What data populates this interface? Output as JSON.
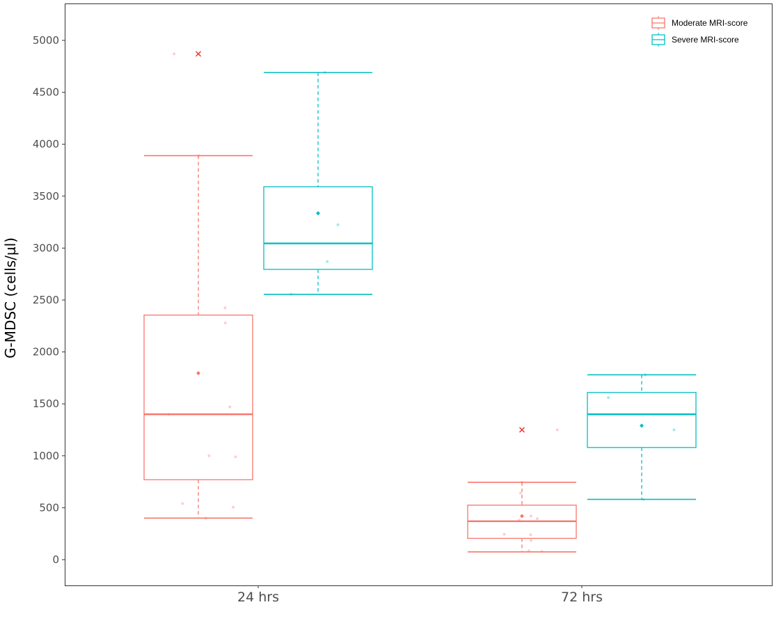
{
  "chart_data": {
    "type": "box",
    "ylabel": "G-MDSC (cells/µl)",
    "xlabel": "",
    "ylim": [
      -250,
      5350
    ],
    "y_ticks": [
      0,
      500,
      1000,
      1500,
      2000,
      2500,
      3000,
      3500,
      4000,
      4500,
      5000
    ],
    "categories": [
      "24 hrs",
      "72 hrs"
    ],
    "grid": false,
    "legend_position": "top-right",
    "series": [
      {
        "name": "Moderate MRI-score",
        "color": "#F8766D",
        "boxes": [
          {
            "category": "24 hrs",
            "whisker_low": 400,
            "q1": 770,
            "median": 1400,
            "q3": 2355,
            "whisker_high": 3890,
            "mean": 1795,
            "outliers": [
              4870
            ],
            "points": [
              4870,
              3890,
              2425,
              2280,
              1470,
              1400,
              1000,
              990,
              540,
              505,
              400
            ]
          },
          {
            "category": "72 hrs",
            "whisker_low": 75,
            "q1": 205,
            "median": 370,
            "q3": 525,
            "whisker_high": 745,
            "mean": 420,
            "outliers": [
              1250
            ],
            "points": [
              1250,
              745,
              640,
              420,
              395,
              380,
              245,
              240,
              185,
              85,
              80
            ]
          }
        ]
      },
      {
        "name": "Severe MRI-score",
        "color": "#00BFC4",
        "boxes": [
          {
            "category": "24 hrs",
            "whisker_low": 2555,
            "q1": 2795,
            "median": 3045,
            "q3": 3590,
            "whisker_high": 4690,
            "mean": 3335,
            "outliers": [],
            "points": [
              4690,
              3225,
              2870,
              2555
            ]
          },
          {
            "category": "72 hrs",
            "whisker_low": 580,
            "q1": 1080,
            "median": 1400,
            "q3": 1610,
            "whisker_high": 1780,
            "mean": 1290,
            "outliers": [],
            "points": [
              1780,
              1560,
              1250,
              580
            ]
          }
        ]
      }
    ]
  }
}
